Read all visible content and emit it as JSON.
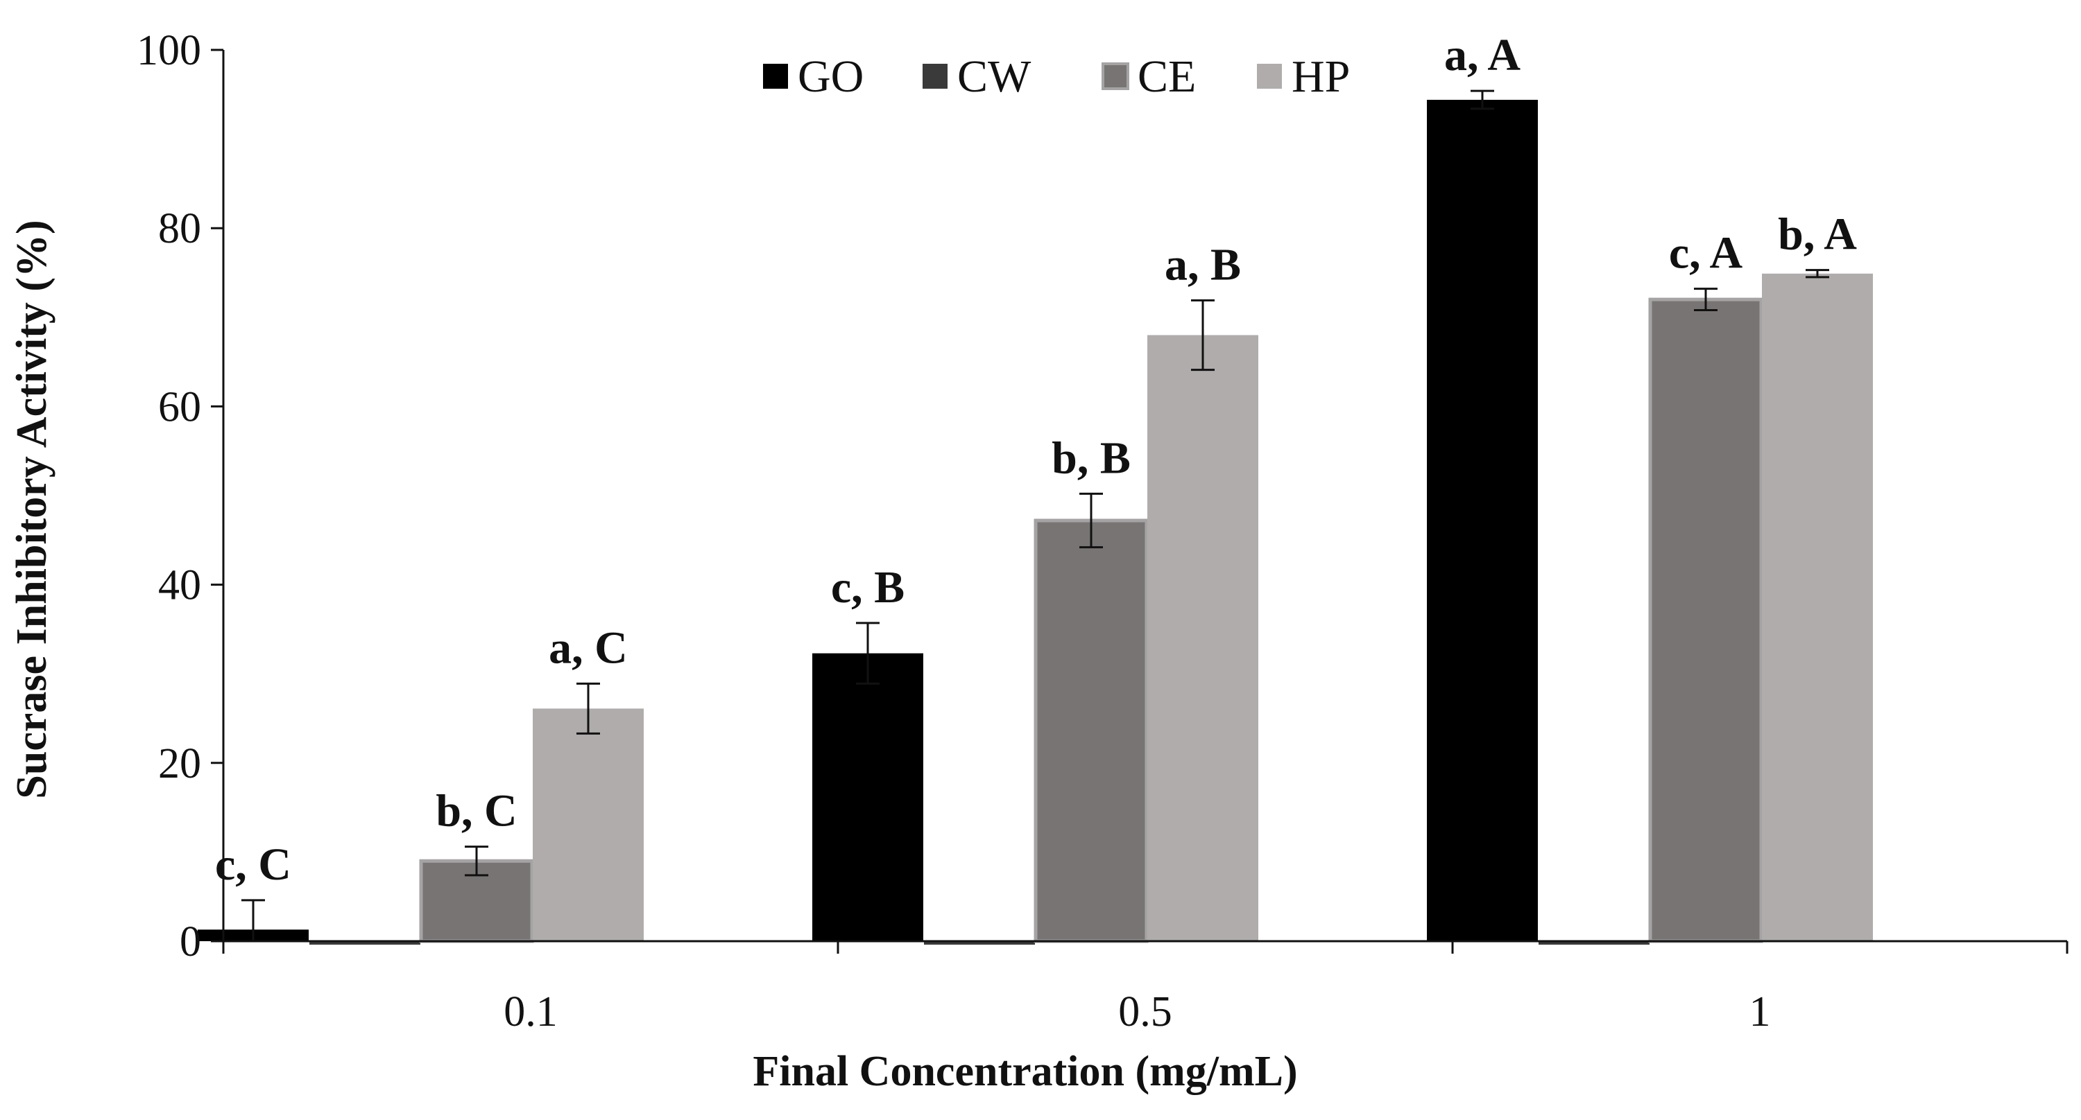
{
  "chart_data": {
    "type": "bar",
    "title": "",
    "xlabel": "Final Concentration (mg/mL)",
    "ylabel": "Sucrase Inhibitory Activity (%)",
    "categories": [
      "0.1",
      "0.5",
      "1"
    ],
    "ylim": [
      0,
      100
    ],
    "yticks": [
      "0",
      "20",
      "40",
      "60",
      "80",
      "100"
    ],
    "legend_position": "top-center",
    "series": [
      {
        "name": "GO",
        "color": "#000000",
        "values": [
          1.3,
          32.3,
          94.4
        ],
        "errors": [
          3.3,
          3.4,
          1.0
        ],
        "labels": [
          "c, C",
          "c, B",
          "a, A"
        ]
      },
      {
        "name": "CW",
        "color": "#3a3a3a",
        "values": [
          0,
          0,
          0
        ],
        "errors": [
          0,
          0,
          0
        ],
        "labels": [
          "",
          "",
          ""
        ]
      },
      {
        "name": "CE",
        "color": "#787474",
        "edge_color": "#a5a3a3",
        "values": [
          9.0,
          47.2,
          72.0
        ],
        "errors": [
          1.6,
          3.0,
          1.2
        ],
        "labels": [
          "b, C",
          "b, B",
          "c, A"
        ]
      },
      {
        "name": "HP",
        "color": "#b0acac",
        "values": [
          26.1,
          68.0,
          74.9
        ],
        "errors": [
          2.8,
          3.9,
          0.4
        ],
        "labels": [
          "a, C",
          "a, B",
          "b, A"
        ]
      }
    ]
  }
}
